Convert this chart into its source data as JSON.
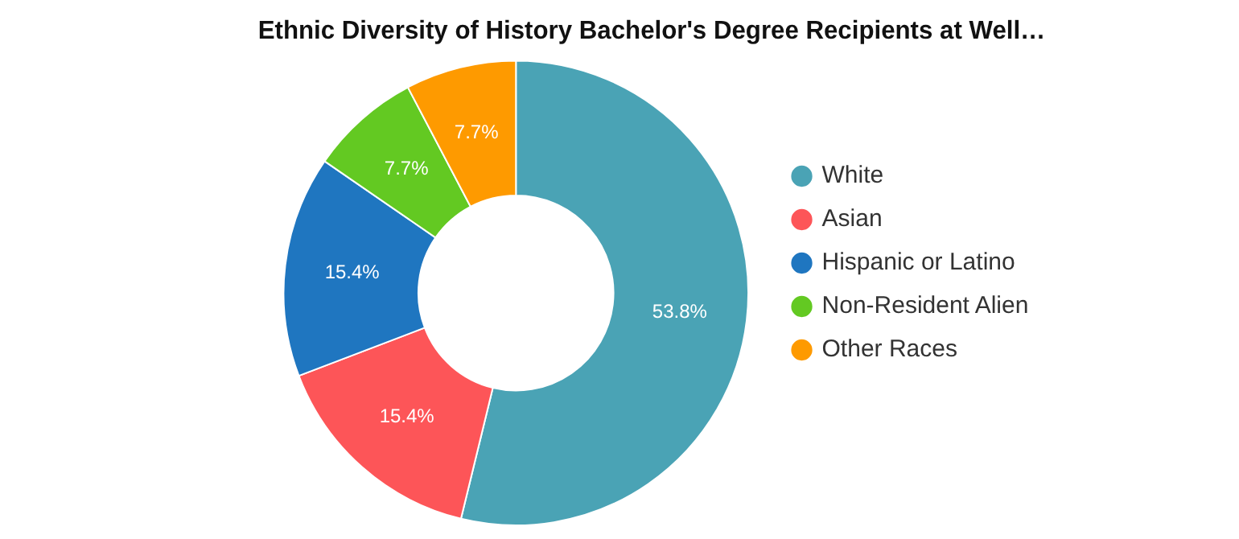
{
  "chart_data": {
    "type": "donut",
    "title": "Ethnic Diversity of History Bachelor's Degree Recipients at Well…",
    "categories": [
      "White",
      "Asian",
      "Hispanic or Latino",
      "Non-Resident Alien",
      "Other Races"
    ],
    "values": [
      53.8,
      15.4,
      15.4,
      7.7,
      7.7
    ],
    "colors": [
      "#4aa3b5",
      "#fd5558",
      "#1f76c0",
      "#63c922",
      "#fe9a00"
    ],
    "value_labels": [
      "53.8%",
      "15.4%",
      "15.4%",
      "7.7%",
      "7.7%"
    ],
    "legend": "right"
  }
}
